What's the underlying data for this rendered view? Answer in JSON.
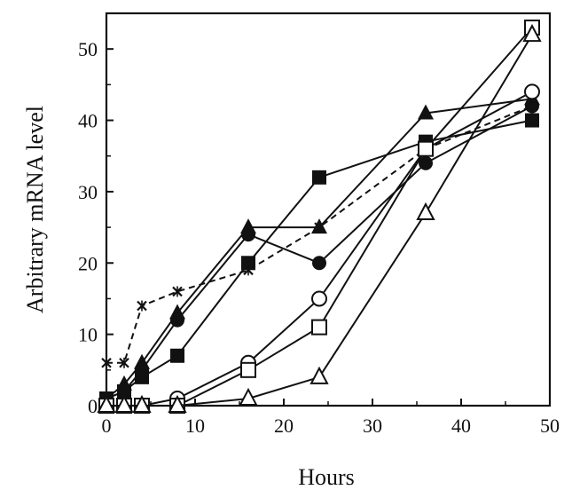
{
  "chart_data": {
    "type": "line",
    "xlabel": "Hours",
    "ylabel": "Arbitrary mRNA level",
    "xlim": [
      0,
      50
    ],
    "ylim": [
      0,
      55
    ],
    "xticks": [
      0,
      10,
      20,
      30,
      40,
      50
    ],
    "yticks": [
      0,
      10,
      20,
      30,
      40,
      50
    ],
    "grid": false,
    "legend": "none",
    "series": [
      {
        "marker": "filled-square",
        "dashed": false,
        "x": [
          0,
          2,
          4,
          8,
          16,
          24,
          36,
          48
        ],
        "y": [
          1,
          2,
          4,
          7,
          20,
          32,
          37,
          40
        ]
      },
      {
        "marker": "filled-triangle",
        "dashed": false,
        "x": [
          0,
          2,
          4,
          8,
          16,
          24,
          36,
          48
        ],
        "y": [
          1,
          3,
          6,
          13,
          25,
          25,
          41,
          43
        ]
      },
      {
        "marker": "filled-circle",
        "dashed": false,
        "x": [
          0,
          2,
          4,
          8,
          16,
          24,
          36,
          48
        ],
        "y": [
          1,
          2,
          5,
          12,
          24,
          20,
          34,
          42
        ]
      },
      {
        "marker": "star",
        "dashed": true,
        "x": [
          0,
          2,
          4,
          8,
          16,
          24,
          36,
          48
        ],
        "y": [
          6,
          6,
          14,
          16,
          19,
          25,
          36,
          42
        ]
      },
      {
        "marker": "open-circle",
        "dashed": false,
        "x": [
          0,
          2,
          4,
          8,
          16,
          24,
          36,
          48
        ],
        "y": [
          0,
          0,
          0,
          1,
          6,
          15,
          36,
          44
        ]
      },
      {
        "marker": "open-square",
        "dashed": false,
        "x": [
          0,
          2,
          4,
          8,
          16,
          24,
          36,
          48
        ],
        "y": [
          0,
          0,
          0,
          0,
          5,
          11,
          36,
          53
        ]
      },
      {
        "marker": "open-triangle",
        "dashed": false,
        "x": [
          0,
          2,
          4,
          8,
          16,
          24,
          36,
          48
        ],
        "y": [
          0,
          0,
          0,
          0,
          1,
          4,
          27,
          52
        ]
      }
    ]
  }
}
